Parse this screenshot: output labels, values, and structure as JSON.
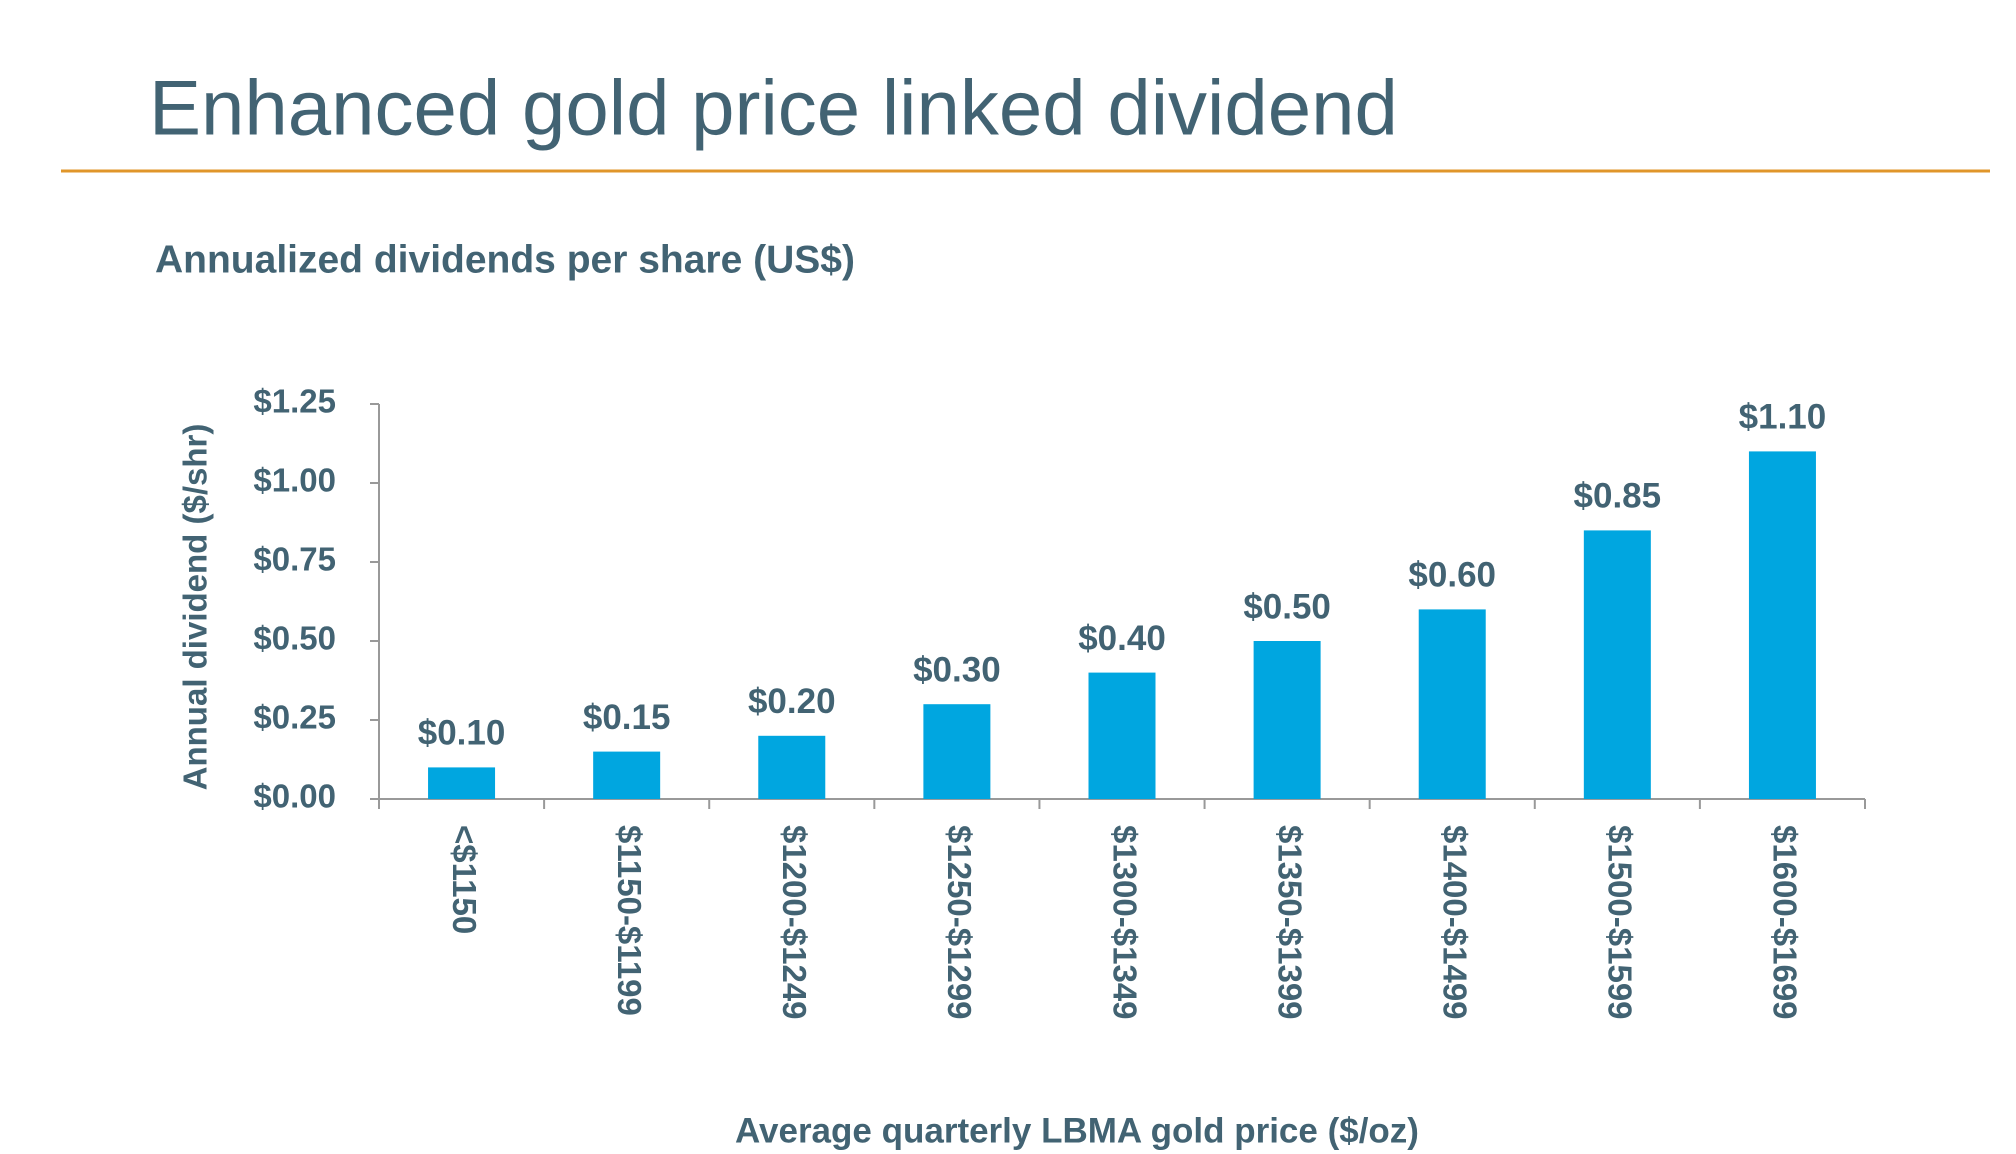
{
  "title": "Enhanced gold price linked dividend",
  "chart_data": {
    "type": "bar",
    "title": "Annualized dividends per share (US$)",
    "y_label": "Annual dividend ($/shr)",
    "x_label": "Average quarterly LBMA gold price ($/oz)",
    "categories": [
      "<$1150",
      "$1150-$1199",
      "$1200-$1249",
      "$1250-$1299",
      "$1300-$1349",
      "$1350-$1399",
      "$1400-$1499",
      "$1500-$1599",
      "$1600-$1699"
    ],
    "values": [
      0.1,
      0.15,
      0.2,
      0.3,
      0.4,
      0.5,
      0.6,
      0.85,
      1.1
    ],
    "value_labels": [
      "$0.10",
      "$0.15",
      "$0.20",
      "$0.30",
      "$0.40",
      "$0.50",
      "$0.60",
      "$0.85",
      "$1.10"
    ],
    "color": "#00a6e0",
    "ylim": [
      0,
      1.25
    ],
    "yticks": [
      {
        "value": 0,
        "label": "$0.00"
      },
      {
        "value": 0.25,
        "label": "$0.25"
      },
      {
        "value": 0.5,
        "label": "$0.50"
      },
      {
        "value": 0.75,
        "label": "$0.75"
      },
      {
        "value": 1.0,
        "label": "$1.00"
      },
      {
        "value": 1.25,
        "label": "$1.25"
      }
    ],
    "grid": false
  }
}
